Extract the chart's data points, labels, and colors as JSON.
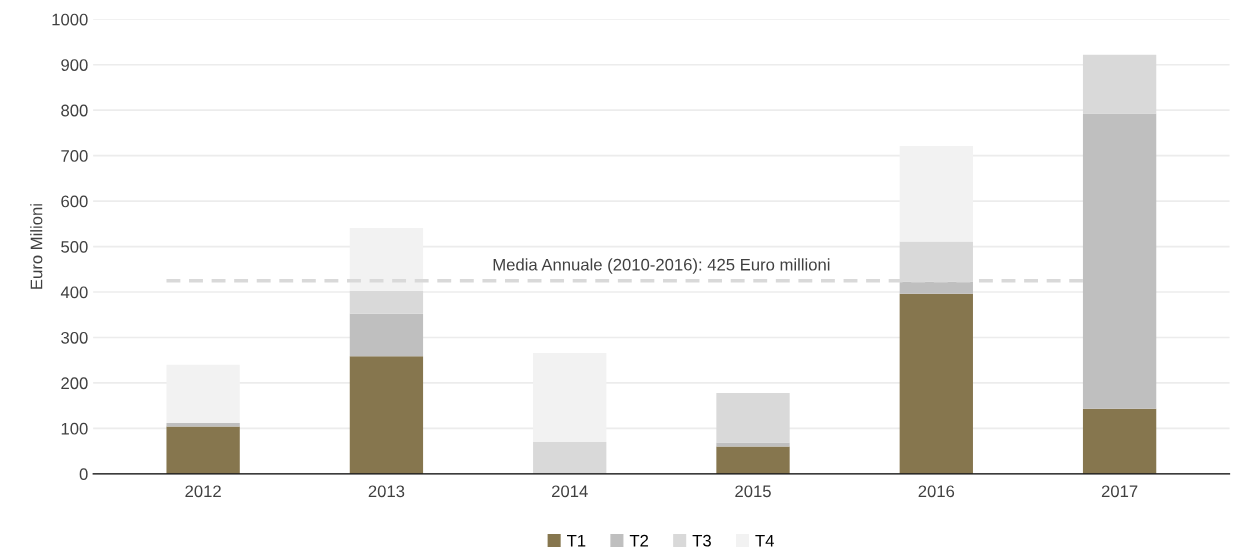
{
  "chart_data": {
    "type": "bar",
    "stacked": true,
    "ylabel": "Euro Milioni",
    "categories": [
      "2012",
      "2013",
      "2014",
      "2015",
      "2016",
      "2017"
    ],
    "series": [
      {
        "name": "T1",
        "color": "#86764e",
        "values": [
          104,
          259,
          0,
          60,
          396,
          143
        ]
      },
      {
        "name": "T2",
        "color": "#bfbfbf",
        "values": [
          8,
          93,
          0,
          9,
          27,
          650
        ]
      },
      {
        "name": "T3",
        "color": "#d9d9d9",
        "values": [
          0,
          51,
          70,
          109,
          88,
          129
        ]
      },
      {
        "name": "T4",
        "color": "#f2f2f2",
        "values": [
          128,
          138,
          196,
          0,
          210,
          0
        ]
      }
    ],
    "ylim": [
      0,
      1000
    ],
    "yticks": [
      0,
      100,
      200,
      300,
      400,
      500,
      600,
      700,
      800,
      900,
      1000
    ],
    "grid": "y",
    "legend": "bottom",
    "ref_lines": [
      {
        "axis": "y",
        "value": 425,
        "label": "Media Annuale (2010-2016): 425 Euro millioni",
        "color": "#d9d9d9",
        "line_style": "dashed"
      }
    ]
  }
}
